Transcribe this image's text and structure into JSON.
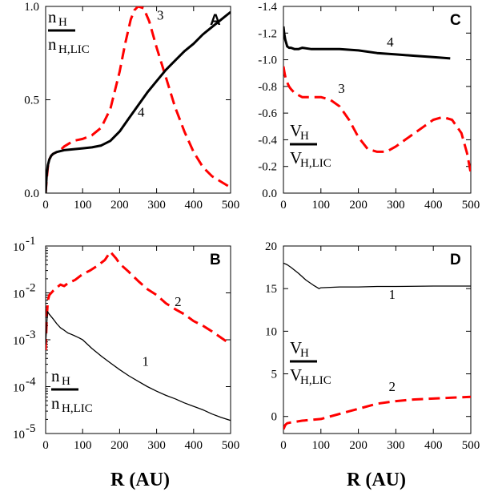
{
  "chart_data": [
    {
      "panel": "A",
      "type": "line",
      "ylabel_num": "n",
      "ylabel_num_sub": "H",
      "ylabel_den": "n",
      "ylabel_den_sub": "H,LIC",
      "xlim": [
        0,
        500
      ],
      "ylim": [
        0,
        1
      ],
      "yscale": "linear",
      "xticks": [
        "0",
        "100",
        "200",
        "300",
        "400",
        "500"
      ],
      "yticks": [
        {
          "v": 0,
          "t": "0.0"
        },
        {
          "v": 0.5,
          "t": "0.5"
        },
        {
          "v": 1.0,
          "t": "1.0"
        }
      ],
      "series": [
        {
          "name": "3",
          "color": "#ff0000",
          "dash": "dashed",
          "width": 3,
          "x": [
            0,
            3,
            6,
            10,
            15,
            20,
            30,
            40,
            50,
            75,
            100,
            125,
            150,
            175,
            200,
            215,
            230,
            240,
            250,
            265,
            280,
            300,
            325,
            350,
            375,
            400,
            425,
            450,
            475,
            500
          ],
          "y": [
            0,
            0.08,
            0.14,
            0.18,
            0.2,
            0.21,
            0.22,
            0.23,
            0.25,
            0.28,
            0.29,
            0.31,
            0.35,
            0.45,
            0.65,
            0.8,
            0.93,
            0.98,
            1.0,
            0.99,
            0.92,
            0.78,
            0.62,
            0.46,
            0.33,
            0.22,
            0.14,
            0.09,
            0.06,
            0.03
          ],
          "label_pos": [
            310,
            0.93
          ]
        },
        {
          "name": "4",
          "color": "#000000",
          "dash": "solid",
          "width": 3,
          "x": [
            0,
            3,
            6,
            10,
            15,
            20,
            30,
            40,
            50,
            75,
            100,
            125,
            150,
            175,
            200,
            225,
            250,
            275,
            300,
            325,
            350,
            375,
            400,
            425,
            450,
            475,
            500
          ],
          "y": [
            0,
            0.1,
            0.15,
            0.18,
            0.2,
            0.21,
            0.22,
            0.225,
            0.23,
            0.235,
            0.24,
            0.245,
            0.255,
            0.28,
            0.33,
            0.4,
            0.47,
            0.54,
            0.6,
            0.66,
            0.71,
            0.76,
            0.8,
            0.85,
            0.89,
            0.93,
            0.97
          ],
          "label_pos": [
            258,
            0.41
          ]
        }
      ]
    },
    {
      "panel": "B",
      "type": "line",
      "ylabel_num": "n",
      "ylabel_num_sub": "H",
      "ylabel_den": "n",
      "ylabel_den_sub": "H,LIC",
      "xlim": [
        0,
        500
      ],
      "ylim": [
        1e-05,
        0.1
      ],
      "yscale": "log",
      "xticks": [
        "0",
        "100",
        "200",
        "300",
        "400",
        "500"
      ],
      "yticks": [
        {
          "e": -5,
          "t": "10"
        },
        {
          "e": -4,
          "t": "10"
        },
        {
          "e": -3,
          "t": "10"
        },
        {
          "e": -2,
          "t": "10"
        },
        {
          "e": -1,
          "t": "10"
        }
      ],
      "series": [
        {
          "name": "2",
          "color": "#ff0000",
          "dash": "dashed",
          "width": 3,
          "x": [
            0,
            3,
            6,
            10,
            20,
            30,
            40,
            50,
            60,
            80,
            100,
            120,
            140,
            160,
            175,
            190,
            200,
            225,
            250,
            275,
            300,
            325,
            350,
            375,
            400,
            425,
            450,
            475,
            500
          ],
          "y": [
            0.0006,
            0.003,
            0.007,
            0.009,
            0.011,
            0.013,
            0.015,
            0.014,
            0.016,
            0.019,
            0.025,
            0.03,
            0.038,
            0.05,
            0.075,
            0.055,
            0.042,
            0.028,
            0.018,
            0.012,
            0.009,
            0.006,
            0.0045,
            0.0035,
            0.0025,
            0.002,
            0.0015,
            0.0011,
            0.0008
          ],
          "label_pos": [
            358,
            0.0052
          ]
        },
        {
          "name": "1",
          "color": "#000000",
          "dash": "solid",
          "width": 1.3,
          "x": [
            0,
            5,
            10,
            20,
            30,
            40,
            50,
            60,
            70,
            80,
            90,
            100,
            125,
            150,
            175,
            200,
            225,
            250,
            275,
            300,
            325,
            350,
            375,
            400,
            425,
            450,
            475,
            500
          ],
          "y": [
            0.0008,
            0.004,
            0.0035,
            0.0028,
            0.0022,
            0.0018,
            0.0016,
            0.0014,
            0.0013,
            0.0012,
            0.0011,
            0.001,
            0.00065,
            0.00045,
            0.00032,
            0.00023,
            0.00017,
            0.00013,
            0.0001,
            8e-05,
            6.5e-05,
            5.5e-05,
            4.5e-05,
            3.8e-05,
            3.2e-05,
            2.6e-05,
            2.2e-05,
            1.9e-05
          ],
          "label_pos": [
            270,
            0.00028
          ]
        }
      ]
    },
    {
      "panel": "C",
      "type": "line",
      "ylabel_num": "V",
      "ylabel_num_sub": "H",
      "ylabel_den": "V",
      "ylabel_den_sub": "H,LIC",
      "xlim": [
        0,
        500
      ],
      "ylim": [
        0,
        -1.4
      ],
      "yscale": "linear",
      "xticks": [
        "0",
        "100",
        "200",
        "300",
        "400",
        "500"
      ],
      "yticks": [
        {
          "v": 0,
          "t": "0.0"
        },
        {
          "v": -0.2,
          "t": "-0.2"
        },
        {
          "v": -0.4,
          "t": "-0.4"
        },
        {
          "v": -0.6,
          "t": "-0.6"
        },
        {
          "v": -0.8,
          "t": "-0.8"
        },
        {
          "v": -1.0,
          "t": "-1.0"
        },
        {
          "v": -1.2,
          "t": "-1.2"
        },
        {
          "v": -1.4,
          "t": "-1.4"
        }
      ],
      "series": [
        {
          "name": "3",
          "color": "#ff0000",
          "dash": "dashed",
          "width": 3,
          "x": [
            0,
            3,
            6,
            10,
            15,
            20,
            30,
            50,
            75,
            100,
            125,
            150,
            175,
            200,
            225,
            250,
            275,
            300,
            325,
            350,
            375,
            400,
            425,
            450,
            475,
            490,
            500
          ],
          "y": [
            -0.95,
            -0.9,
            -0.86,
            -0.83,
            -0.8,
            -0.78,
            -0.75,
            -0.72,
            -0.72,
            -0.72,
            -0.7,
            -0.65,
            -0.55,
            -0.42,
            -0.33,
            -0.31,
            -0.31,
            -0.35,
            -0.4,
            -0.45,
            -0.5,
            -0.55,
            -0.57,
            -0.55,
            -0.45,
            -0.3,
            -0.15
          ],
          "label_pos": [
            155,
            -0.75
          ]
        },
        {
          "name": "4",
          "color": "#000000",
          "dash": "solid",
          "width": 3,
          "x": [
            0,
            2,
            5,
            10,
            15,
            20,
            30,
            40,
            50,
            75,
            100,
            150,
            200,
            250,
            300,
            350,
            400,
            445
          ],
          "y": [
            -1.25,
            -1.2,
            -1.15,
            -1.1,
            -1.09,
            -1.09,
            -1.08,
            -1.08,
            -1.09,
            -1.08,
            -1.08,
            -1.08,
            -1.07,
            -1.05,
            -1.04,
            -1.03,
            -1.02,
            -1.01
          ],
          "label_pos": [
            285,
            -1.1
          ]
        }
      ]
    },
    {
      "panel": "D",
      "type": "line",
      "ylabel_num": "V",
      "ylabel_num_sub": "H",
      "ylabel_den": "V",
      "ylabel_den_sub": "H,LIC",
      "xlim": [
        0,
        500
      ],
      "ylim": [
        -2,
        20
      ],
      "yscale": "linear",
      "xticks": [
        "0",
        "100",
        "200",
        "300",
        "400",
        "500"
      ],
      "yticks": [
        {
          "v": 0,
          "t": "0"
        },
        {
          "v": 5,
          "t": "5"
        },
        {
          "v": 10,
          "t": "10"
        },
        {
          "v": 15,
          "t": "15"
        },
        {
          "v": 20,
          "t": "20"
        }
      ],
      "series": [
        {
          "name": "1",
          "color": "#000000",
          "dash": "solid",
          "width": 1.3,
          "x": [
            0,
            10,
            20,
            40,
            60,
            80,
            95,
            100,
            150,
            200,
            250,
            300,
            400,
            500
          ],
          "y": [
            18,
            17.8,
            17.5,
            16.8,
            16,
            15.4,
            15.0,
            15.1,
            15.2,
            15.2,
            15.25,
            15.25,
            15.3,
            15.3
          ],
          "label_pos": [
            290,
            13.8
          ]
        },
        {
          "name": "2",
          "color": "#ff0000",
          "dash": "dashed",
          "width": 3,
          "x": [
            0,
            5,
            10,
            20,
            50,
            100,
            150,
            200,
            250,
            300,
            350,
            400,
            450,
            500
          ],
          "y": [
            -1.5,
            -1.0,
            -0.8,
            -0.7,
            -0.5,
            -0.3,
            0.3,
            0.9,
            1.5,
            1.8,
            2.0,
            2.1,
            2.2,
            2.3
          ],
          "label_pos": [
            290,
            3.0
          ]
        }
      ]
    }
  ],
  "xaxis_title": "R (AU)"
}
